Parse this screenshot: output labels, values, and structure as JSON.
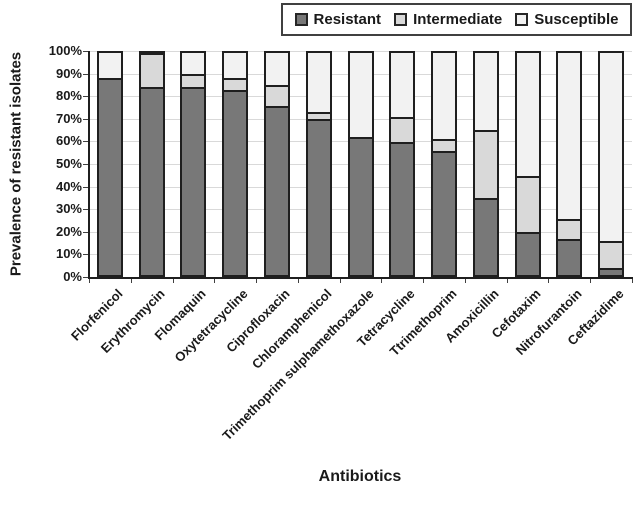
{
  "chart_data": {
    "type": "bar",
    "stacked": true,
    "orientation": "vertical",
    "xlabel": "Antibiotics",
    "ylabel": "Prevalence of resistant isolates",
    "ylim": [
      0,
      100
    ],
    "y_tick_step": 10,
    "y_tick_labels": [
      "0%",
      "10%",
      "20%",
      "30%",
      "40%",
      "50%",
      "60%",
      "70%",
      "80%",
      "90%",
      "100%"
    ],
    "grid": "horizontal",
    "legend_position": "top-right",
    "categories": [
      "Florfenicol",
      "Erythromycin",
      "Flomaquin",
      "Oxytetracycline",
      "Ciprofloxacin",
      "Chloramphenicol",
      "Trimethoprim sulphamethoxazole",
      "Tetracycline",
      "Ttrimethoprim",
      "Amoxicillin",
      "Cefotaxim",
      "Nitrofurantoin",
      "Ceftazidime"
    ],
    "series": [
      {
        "name": "Resistant",
        "color": "#787878",
        "values": [
          87,
          84,
          83,
          82,
          75,
          69,
          61,
          59,
          55,
          34,
          19,
          16,
          3
        ]
      },
      {
        "name": "Intermediate",
        "color": "#d9d9d9",
        "values": [
          0,
          15,
          6,
          5,
          9,
          3,
          0,
          11,
          5,
          30,
          25,
          9,
          12
        ]
      },
      {
        "name": "Susceptible",
        "color": "#f2f2f2",
        "values": [
          13,
          1,
          11,
          13,
          16,
          28,
          39,
          30,
          40,
          36,
          56,
          75,
          85
        ]
      }
    ]
  },
  "colors": {
    "segment_border": "#1f1f1f",
    "gridline": "#d9d9d9",
    "axis": "#1f1f1f",
    "text": "#1a1a1a"
  }
}
